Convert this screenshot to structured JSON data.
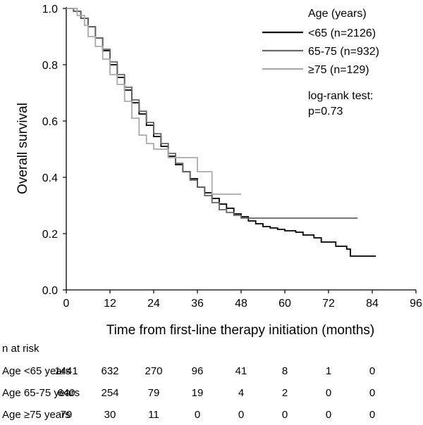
{
  "chart_data": {
    "type": "line",
    "subtype": "kaplan-meier",
    "title": "",
    "xlabel": "Time from first-line therapy initiation (months)",
    "ylabel": "Overall survival",
    "xlim": [
      0,
      96
    ],
    "ylim": [
      0,
      1.0
    ],
    "x_ticks": [
      0,
      12,
      24,
      36,
      48,
      60,
      72,
      84,
      96
    ],
    "x_tick_labels": [
      "0",
      "12",
      "24",
      "36",
      "48",
      "60",
      "72",
      "84",
      "96"
    ],
    "y_ticks": [
      0.0,
      0.2,
      0.4,
      0.6,
      0.8,
      1.0
    ],
    "y_tick_labels": [
      "0.0",
      "0.2",
      "0.4",
      "0.6",
      "0.8",
      "1.0"
    ],
    "grid": false,
    "legend": {
      "title": "Age (years)",
      "position": "top-right",
      "entries": [
        "<65 (n=2126)",
        "65-75 (n=932)",
        "≥75 (n=129)"
      ]
    },
    "annotation": [
      "log-rank test:",
      "p=0.73"
    ],
    "series": [
      {
        "name": "<65 (n=2126)",
        "color": "#000000",
        "points": [
          [
            0,
            1.0
          ],
          [
            2,
            0.99
          ],
          [
            4,
            0.965
          ],
          [
            6,
            0.935
          ],
          [
            8,
            0.895
          ],
          [
            10,
            0.85
          ],
          [
            12,
            0.8
          ],
          [
            14,
            0.755
          ],
          [
            16,
            0.71
          ],
          [
            18,
            0.665
          ],
          [
            20,
            0.625
          ],
          [
            22,
            0.585
          ],
          [
            24,
            0.545
          ],
          [
            26,
            0.51
          ],
          [
            28,
            0.475
          ],
          [
            30,
            0.445
          ],
          [
            32,
            0.42
          ],
          [
            34,
            0.395
          ],
          [
            36,
            0.365
          ],
          [
            38,
            0.345
          ],
          [
            40,
            0.325
          ],
          [
            42,
            0.305
          ],
          [
            44,
            0.29
          ],
          [
            46,
            0.27
          ],
          [
            48,
            0.26
          ],
          [
            50,
            0.245
          ],
          [
            52,
            0.235
          ],
          [
            54,
            0.225
          ],
          [
            56,
            0.22
          ],
          [
            58,
            0.215
          ],
          [
            60,
            0.21
          ],
          [
            63,
            0.205
          ],
          [
            65,
            0.195
          ],
          [
            68,
            0.185
          ],
          [
            70,
            0.17
          ],
          [
            74,
            0.155
          ],
          [
            77,
            0.145
          ],
          [
            78,
            0.12
          ],
          [
            85,
            0.12
          ]
        ]
      },
      {
        "name": "65-75 (n=932)",
        "color": "#666666",
        "points": [
          [
            0,
            1.0
          ],
          [
            2,
            0.99
          ],
          [
            4,
            0.965
          ],
          [
            6,
            0.935
          ],
          [
            8,
            0.895
          ],
          [
            10,
            0.855
          ],
          [
            12,
            0.81
          ],
          [
            14,
            0.765
          ],
          [
            16,
            0.72
          ],
          [
            18,
            0.675
          ],
          [
            20,
            0.635
          ],
          [
            22,
            0.595
          ],
          [
            24,
            0.555
          ],
          [
            26,
            0.52
          ],
          [
            28,
            0.485
          ],
          [
            30,
            0.45
          ],
          [
            32,
            0.42
          ],
          [
            34,
            0.39
          ],
          [
            36,
            0.365
          ],
          [
            38,
            0.335
          ],
          [
            40,
            0.31
          ],
          [
            42,
            0.285
          ],
          [
            44,
            0.275
          ],
          [
            46,
            0.265
          ],
          [
            48,
            0.255
          ],
          [
            80,
            0.255
          ]
        ]
      },
      {
        "name": "≥75 (n=129)",
        "color": "#aaaaaa",
        "points": [
          [
            0,
            1.0
          ],
          [
            3,
            0.975
          ],
          [
            5,
            0.94
          ],
          [
            6,
            0.9
          ],
          [
            8,
            0.865
          ],
          [
            10,
            0.82
          ],
          [
            12,
            0.765
          ],
          [
            14,
            0.73
          ],
          [
            16,
            0.67
          ],
          [
            18,
            0.61
          ],
          [
            20,
            0.55
          ],
          [
            22,
            0.52
          ],
          [
            24,
            0.5
          ],
          [
            28,
            0.47
          ],
          [
            36,
            0.47
          ],
          [
            36,
            0.42
          ],
          [
            40,
            0.42
          ],
          [
            40,
            0.34
          ],
          [
            48,
            0.34
          ]
        ]
      }
    ],
    "risk_table": {
      "title": "n at risk",
      "times": [
        "0",
        "12",
        "24",
        "36",
        "48",
        "60",
        "72",
        "84"
      ],
      "rows": [
        {
          "label": "Age <65 years",
          "values": [
            "1441",
            "632",
            "270",
            "96",
            "41",
            "8",
            "1",
            "0"
          ]
        },
        {
          "label": "Age 65-75 years",
          "values": [
            "640",
            "254",
            "79",
            "19",
            "4",
            "2",
            "0",
            "0"
          ]
        },
        {
          "label": "Age ≥75 years",
          "values": [
            "79",
            "30",
            "11",
            "0",
            "0",
            "0",
            "0",
            "0"
          ]
        }
      ]
    }
  }
}
